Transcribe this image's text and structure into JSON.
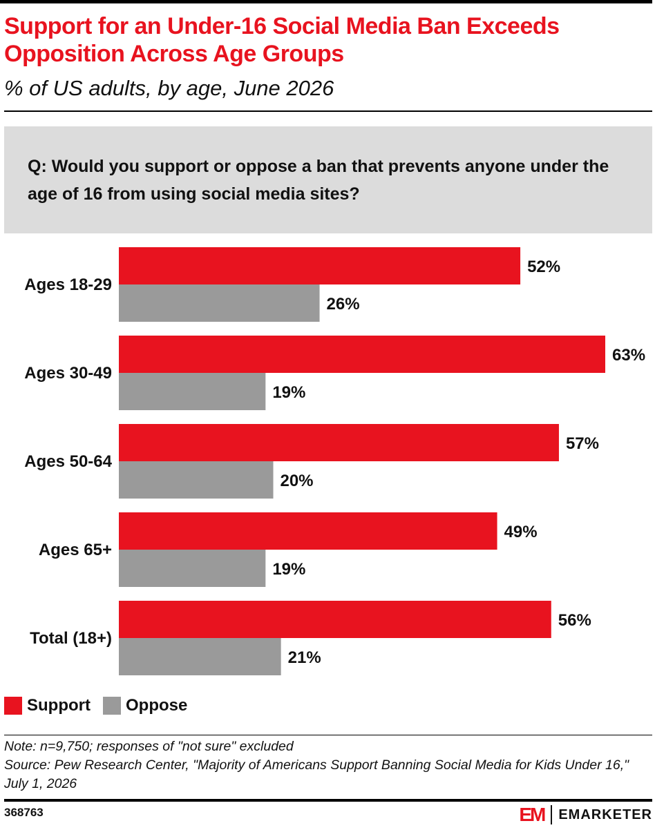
{
  "header": {
    "title": "Support for an Under-16 Social Media Ban Exceeds Opposition Across Age Groups",
    "subtitle": "% of US adults, by age, June 2026"
  },
  "question": "Q: Would you support or oppose a ban that prevents anyone under the age of 16 from using social media sites?",
  "chart_data": {
    "type": "bar",
    "orientation": "horizontal",
    "categories": [
      "Ages 18-29",
      "Ages 30-49",
      "Ages 50-64",
      "Ages 65+",
      "Total (18+)"
    ],
    "series": [
      {
        "name": "Support",
        "color": "#e8131f",
        "values": [
          52,
          63,
          57,
          49,
          56
        ]
      },
      {
        "name": "Oppose",
        "color": "#9a9a9a",
        "values": [
          26,
          19,
          20,
          19,
          21
        ]
      }
    ],
    "value_suffix": "%",
    "xlim": [
      0,
      63
    ],
    "grid": false,
    "legend_position": "bottom-left"
  },
  "footer": {
    "note": "Note: n=9,750; responses of \"not sure\" excluded",
    "source": "Source: Pew Research Center, \"Majority of Americans Support Banning Social Media for Kids Under 16,\" July 1, 2026",
    "chart_id": "368763",
    "brand_mark": "EM",
    "brand_name": "EMARKETER"
  }
}
